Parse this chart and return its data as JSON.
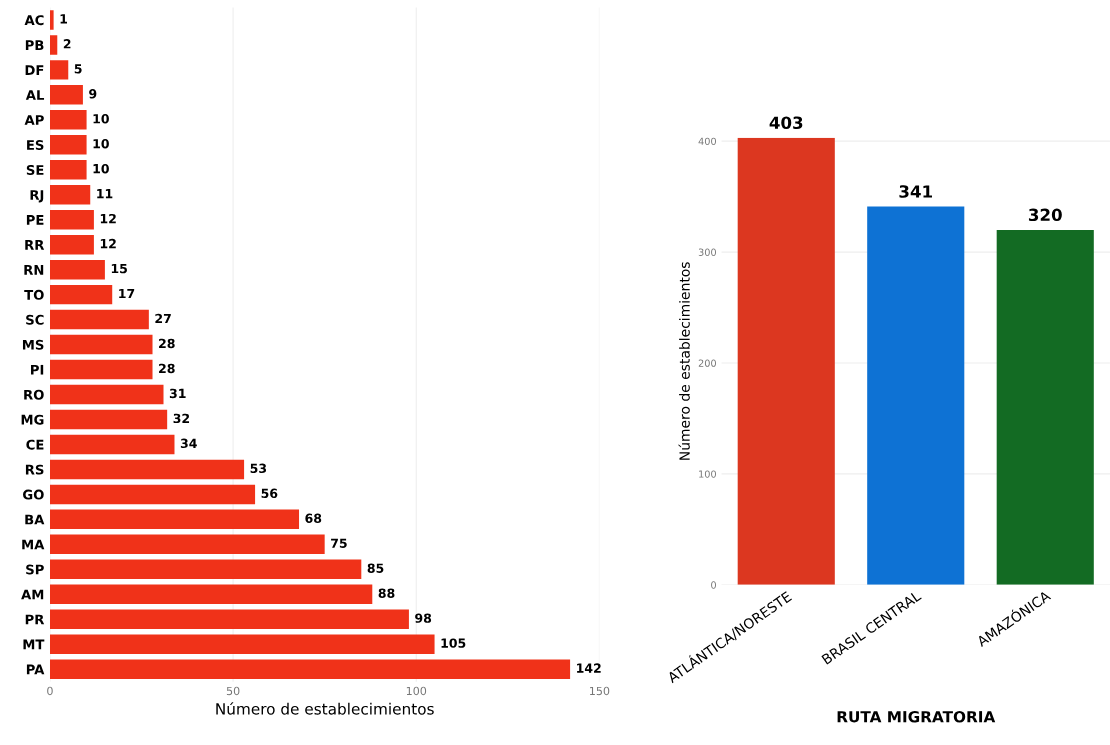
{
  "chart_data": [
    {
      "type": "bar",
      "orientation": "horizontal",
      "categories": [
        "AC",
        "PB",
        "DF",
        "AL",
        "AP",
        "ES",
        "SE",
        "RJ",
        "PE",
        "RR",
        "RN",
        "TO",
        "SC",
        "MS",
        "PI",
        "RO",
        "MG",
        "CE",
        "RS",
        "GO",
        "BA",
        "MA",
        "SP",
        "AM",
        "PR",
        "MT",
        "PA"
      ],
      "values": [
        1,
        2,
        5,
        9,
        10,
        10,
        10,
        11,
        12,
        12,
        15,
        17,
        27,
        28,
        28,
        31,
        32,
        34,
        53,
        56,
        68,
        75,
        85,
        88,
        98,
        105,
        142
      ],
      "color": "#f03219",
      "xlabel": "Número de establecimientos",
      "xlim": [
        0,
        150
      ],
      "xticks": [
        0,
        50,
        100,
        150
      ],
      "grid": "x",
      "data_labels": true
    },
    {
      "type": "bar",
      "categories": [
        "ATLÁNTICA/NORESTE",
        "BRASIL CENTRAL",
        "AMAZÓNICA"
      ],
      "values": [
        403,
        341,
        320
      ],
      "colors": [
        "#dc3720",
        "#0e72d4",
        "#136b23"
      ],
      "xlabel": "RUTA MIGRATORIA",
      "ylabel": "Número de establecimientos",
      "ylim": [
        0,
        403
      ],
      "yticks": [
        0,
        100,
        200,
        300,
        400
      ],
      "grid": "y",
      "data_labels": true
    }
  ]
}
